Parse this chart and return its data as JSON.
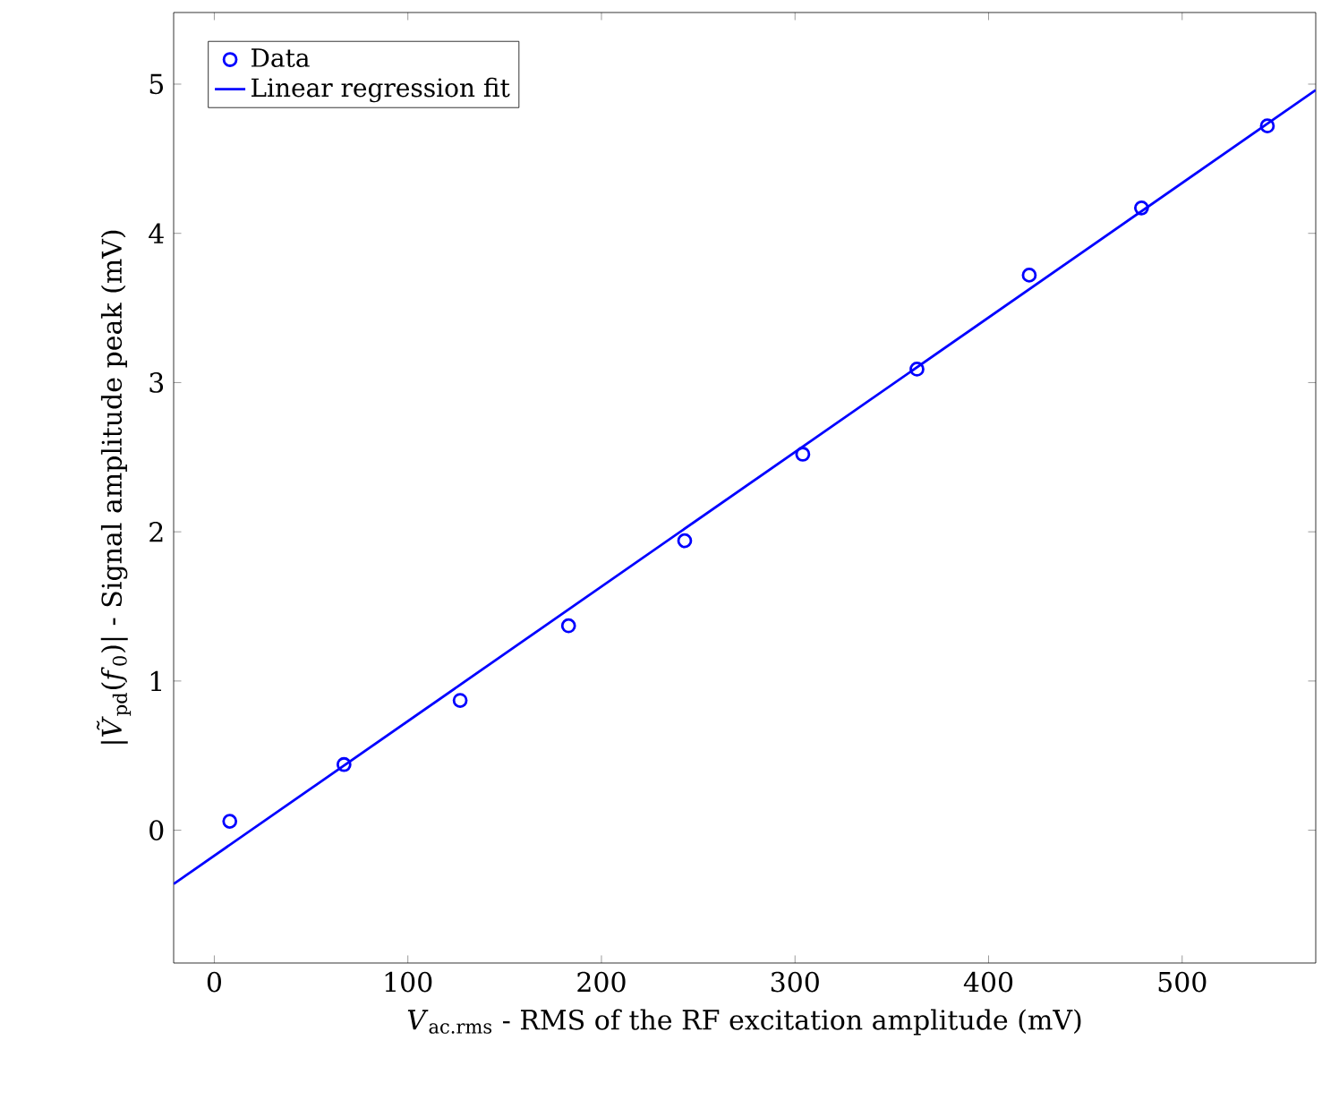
{
  "chart_data": {
    "type": "scatter",
    "xlabel": "*V*$_{ac.rms}$ - RMS of the RF excitation amplitude (mV)",
    "ylabel": "|*Ṽ*$_{pd}$(*f*$_{0}$)| - Signal amplitude peak (mV)",
    "xlim": [
      -21,
      569
    ],
    "ylim": [
      -0.89,
      5.48
    ],
    "xticks": [
      0,
      100,
      200,
      300,
      400,
      500
    ],
    "yticks": [
      0,
      1,
      2,
      3,
      4,
      5
    ],
    "legend": "top left",
    "grid": false,
    "series": [
      {
        "name": "Data",
        "marker": "circle",
        "color": "#0000ff",
        "x": [
          8,
          67,
          127,
          183,
          243,
          304,
          363,
          421,
          479,
          544
        ],
        "values": [
          0.06,
          0.44,
          0.87,
          1.37,
          1.94,
          2.52,
          3.09,
          3.72,
          4.17,
          4.72
        ]
      },
      {
        "name": "Linear regression fit",
        "type": "line",
        "line_style": "solid",
        "color": "#0000ff",
        "x": [
          -21,
          569
        ],
        "values": [
          -0.36,
          4.96
        ]
      }
    ]
  }
}
